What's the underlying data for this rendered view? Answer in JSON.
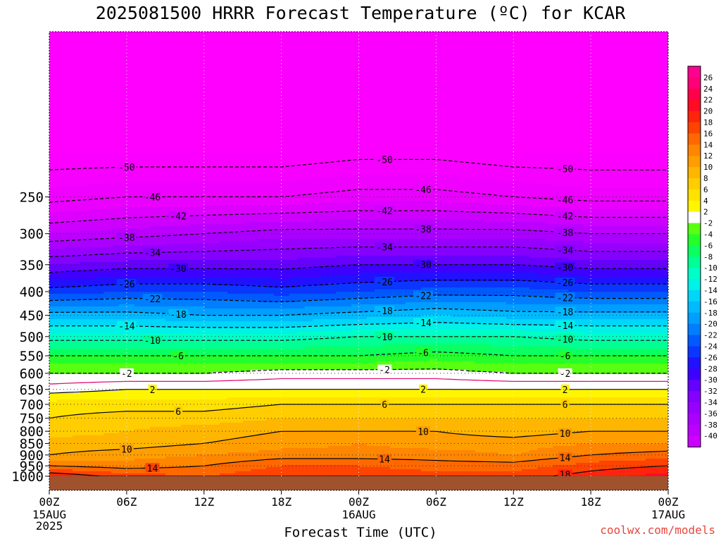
{
  "title": "2025081500 HRRR Forecast Temperature (ºC) for KCAR",
  "credit": "coolwx.com/models",
  "chart_data": {
    "type": "heatmap",
    "title": "2025081500 HRRR Forecast Temperature (ºC) for KCAR",
    "xlabel": "Forecast Time (UTC)",
    "ylabel": "",
    "x_ticks": [
      {
        "label": "00Z",
        "sub": [
          "15AUG",
          "2025"
        ]
      },
      {
        "label": "06Z",
        "sub": []
      },
      {
        "label": "12Z",
        "sub": []
      },
      {
        "label": "18Z",
        "sub": []
      },
      {
        "label": "00Z",
        "sub": [
          "16AUG"
        ]
      },
      {
        "label": "06Z",
        "sub": []
      },
      {
        "label": "12Z",
        "sub": []
      },
      {
        "label": "18Z",
        "sub": []
      },
      {
        "label": "00Z",
        "sub": [
          "17AUG"
        ]
      }
    ],
    "y_axis": {
      "scale": "pressure-log",
      "range": [
        1000,
        200
      ],
      "reversed": true
    },
    "y_ticks": [
      250,
      300,
      350,
      400,
      450,
      500,
      550,
      600,
      650,
      700,
      750,
      800,
      850,
      900,
      950,
      1000
    ],
    "hours": [
      0,
      6,
      12,
      18,
      24,
      30,
      36,
      42,
      48
    ],
    "levels": [
      1000,
      950,
      900,
      850,
      800,
      750,
      700,
      650,
      600,
      550,
      500,
      450,
      400,
      350,
      300,
      250,
      200
    ],
    "temperature_profiles": [
      [
        20,
        14,
        10,
        9,
        7,
        6,
        5,
        1,
        -2,
        -6,
        -11,
        -17,
        -25,
        -32,
        -40,
        -47,
        -52
      ],
      [
        17,
        13,
        11,
        9,
        8,
        7,
        5,
        2,
        -2,
        -6,
        -11,
        -17,
        -24,
        -31,
        -39,
        -46,
        -52
      ],
      [
        16,
        14,
        12,
        10,
        9,
        7,
        5,
        2,
        -2,
        -6,
        -11,
        -18,
        -24,
        -31,
        -38,
        -46,
        -52
      ],
      [
        18,
        16,
        13,
        11,
        10,
        8,
        6,
        2,
        -1,
        -6,
        -11,
        -18,
        -25,
        -31,
        -37,
        -46,
        -52
      ],
      [
        18,
        16,
        13,
        12,
        10,
        8,
        6,
        2,
        -1,
        -6,
        -10,
        -17,
        -24,
        -30,
        -37,
        -45,
        -51
      ],
      [
        17,
        15,
        13,
        11,
        10,
        8,
        6,
        2,
        -1,
        -5,
        -10,
        -16,
        -23,
        -30,
        -37,
        -45,
        -51
      ],
      [
        17,
        15,
        12,
        11,
        9,
        8,
        6,
        2,
        -2,
        -6,
        -10,
        -17,
        -23,
        -30,
        -37,
        -46,
        -52
      ],
      [
        19,
        17,
        14,
        12,
        10,
        8,
        6,
        2,
        -2,
        -6,
        -11,
        -17,
        -24,
        -31,
        -38,
        -47,
        -52
      ],
      [
        21,
        18,
        15,
        12,
        10,
        8,
        6,
        2,
        -2,
        -6,
        -11,
        -17,
        -24,
        -31,
        -38,
        -47,
        -52
      ]
    ],
    "contour_labels": [
      -50,
      -46,
      -42,
      -38,
      -34,
      -30,
      -26,
      -22,
      -18,
      -14,
      -10,
      -6,
      -2,
      2,
      6,
      10,
      14,
      18
    ],
    "colorbar_ticks": [
      26,
      24,
      22,
      20,
      18,
      16,
      14,
      12,
      10,
      8,
      6,
      4,
      2,
      -2,
      -4,
      -6,
      -8,
      -10,
      -12,
      -14,
      -16,
      -18,
      -20,
      -22,
      -24,
      -26,
      -28,
      -30,
      -32,
      -34,
      -36,
      -38,
      -40
    ],
    "colors": {
      "ground": "#a0522d",
      "zero_line": "#dd1177"
    }
  }
}
